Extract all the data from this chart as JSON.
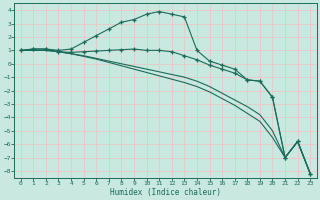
{
  "xlabel": "Humidex (Indice chaleur)",
  "xlim": [
    -0.5,
    23.5
  ],
  "ylim": [
    -8.5,
    4.5
  ],
  "xticks": [
    0,
    1,
    2,
    3,
    4,
    5,
    6,
    7,
    8,
    9,
    10,
    11,
    12,
    13,
    14,
    15,
    16,
    17,
    18,
    19,
    20,
    21,
    22,
    23
  ],
  "yticks": [
    -8,
    -7,
    -6,
    -5,
    -4,
    -3,
    -2,
    -1,
    0,
    1,
    2,
    3,
    4
  ],
  "bg_color": "#c8e8e0",
  "line_color": "#1a6b5a",
  "grid_color": "#e8c8c8",
  "lines": [
    {
      "x": [
        0,
        1,
        2,
        3,
        4,
        5,
        6,
        7,
        8,
        9,
        10,
        11,
        12,
        13,
        14,
        15,
        16,
        17,
        18,
        19,
        20,
        21,
        22,
        23
      ],
      "y": [
        1.0,
        1.1,
        1.1,
        1.0,
        1.1,
        1.6,
        2.1,
        2.6,
        3.1,
        3.3,
        3.7,
        3.9,
        3.7,
        3.5,
        1.0,
        0.2,
        -0.1,
        -0.4,
        -1.2,
        -1.3,
        -2.5,
        -7.0,
        -5.8,
        -8.2
      ],
      "marker": true
    },
    {
      "x": [
        0,
        1,
        2,
        3,
        4,
        5,
        6,
        7,
        8,
        9,
        10,
        11,
        12,
        13,
        14,
        15,
        16,
        17,
        18,
        19,
        20,
        21,
        22,
        23
      ],
      "y": [
        1.0,
        1.1,
        1.1,
        0.9,
        0.85,
        0.9,
        0.95,
        1.0,
        1.05,
        1.1,
        1.0,
        1.0,
        0.9,
        0.6,
        0.3,
        -0.1,
        -0.4,
        -0.7,
        -1.2,
        -1.3,
        -2.5,
        -7.0,
        -5.8,
        -8.2
      ],
      "marker": true
    },
    {
      "x": [
        0,
        1,
        2,
        3,
        4,
        5,
        6,
        7,
        8,
        9,
        10,
        11,
        12,
        13,
        14,
        15,
        16,
        17,
        18,
        19,
        20,
        21,
        22,
        23
      ],
      "y": [
        1.0,
        1.0,
        1.0,
        0.9,
        0.75,
        0.6,
        0.4,
        0.2,
        0.0,
        -0.2,
        -0.4,
        -0.6,
        -0.8,
        -1.0,
        -1.3,
        -1.7,
        -2.2,
        -2.7,
        -3.2,
        -3.8,
        -5.0,
        -7.0,
        -5.8,
        -8.2
      ],
      "marker": false
    },
    {
      "x": [
        0,
        1,
        2,
        3,
        4,
        5,
        6,
        7,
        8,
        9,
        10,
        11,
        12,
        13,
        14,
        15,
        16,
        17,
        18,
        19,
        20,
        21,
        22,
        23
      ],
      "y": [
        1.0,
        1.0,
        1.0,
        0.9,
        0.75,
        0.55,
        0.35,
        0.1,
        -0.15,
        -0.4,
        -0.65,
        -0.9,
        -1.15,
        -1.4,
        -1.7,
        -2.1,
        -2.6,
        -3.1,
        -3.7,
        -4.3,
        -5.5,
        -7.0,
        -5.8,
        -8.2
      ],
      "marker": false
    }
  ]
}
